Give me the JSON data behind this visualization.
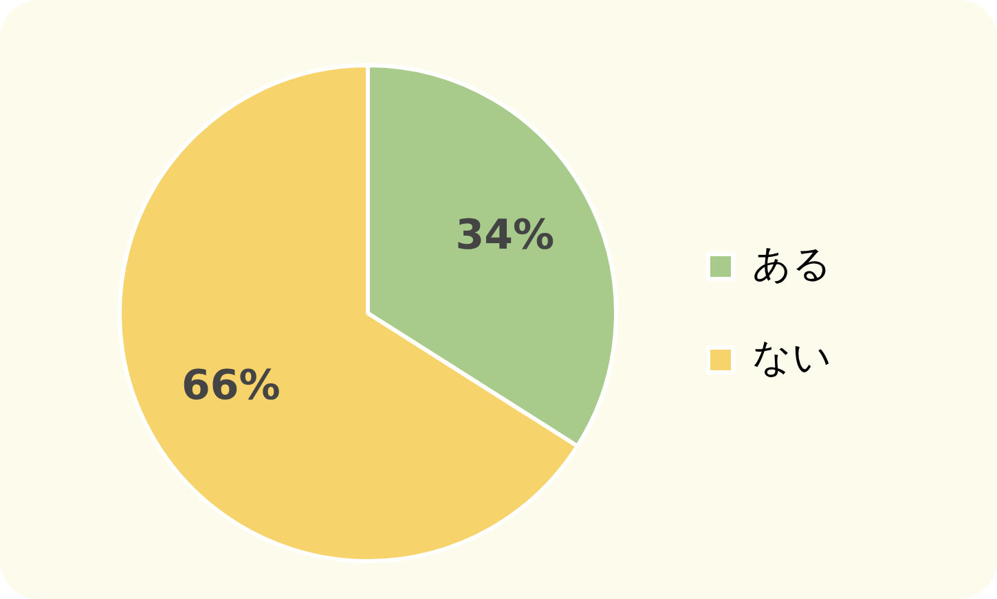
{
  "chart_data": {
    "type": "pie",
    "categories": [
      "ある",
      "ない"
    ],
    "values": [
      34,
      66
    ],
    "colors": [
      "#a8cb8b",
      "#f7d36b"
    ],
    "value_labels": [
      "34%",
      "66%"
    ],
    "legend": "right"
  }
}
